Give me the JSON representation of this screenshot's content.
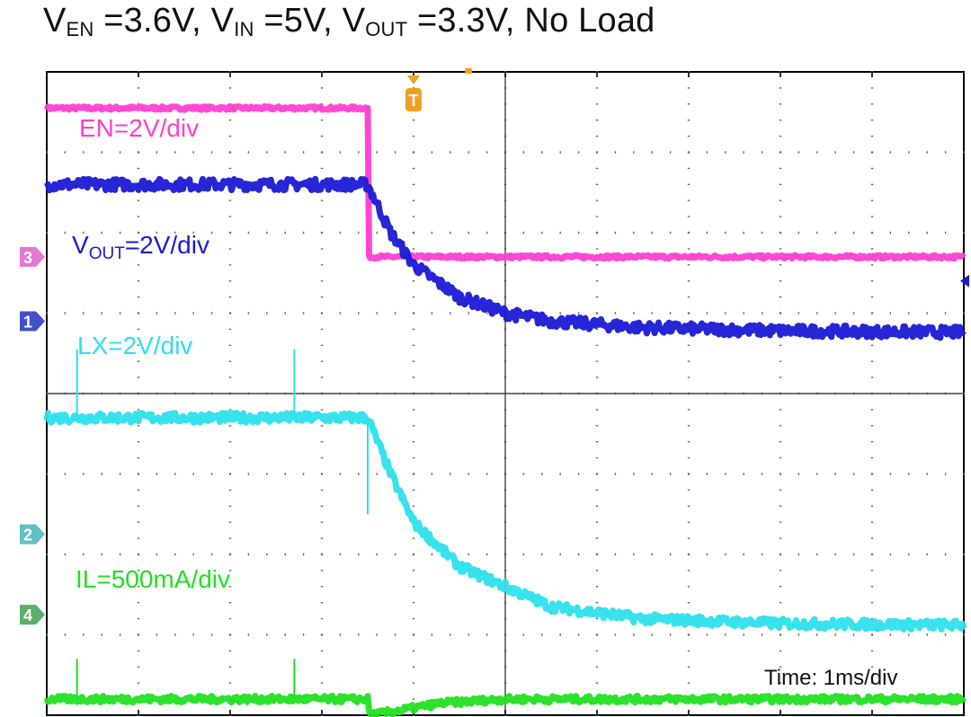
{
  "title": {
    "parts": [
      {
        "main": "V",
        "sub": "EN",
        "rest": " =3.6V, "
      },
      {
        "main": "V",
        "sub": "IN",
        "rest": " =5V, "
      },
      {
        "main": "V",
        "sub": "OUT",
        "rest": " =3.3V, No Load"
      }
    ]
  },
  "chart_data": {
    "type": "line",
    "title": "VEN =3.6V, VIN =5V, VOUT =3.3V, No Load",
    "x_scale_label": "Time: 1ms/div",
    "divisions": {
      "x": 10,
      "y": 8
    },
    "x_range_div": [
      0,
      10
    ],
    "y_range_div": [
      -4,
      4
    ],
    "grid": true,
    "trigger_marker": "T",
    "series": [
      {
        "name": "EN",
        "label": "EN=2V/div",
        "color": "#ff3fd0",
        "channel": "3",
        "volts_per_div": 2,
        "x": [
          0,
          3.5,
          3.5,
          10
        ],
        "y": [
          3.55,
          3.55,
          1.7,
          1.7
        ],
        "noise": 0.02
      },
      {
        "name": "VOUT",
        "label_main": "V",
        "label_sub": "OUT",
        "label_rest": "=2V/div",
        "color": "#1a1ad4",
        "channel": "1",
        "volts_per_div": 2,
        "x": [
          0,
          3.5,
          3.75,
          4.0,
          4.5,
          5.0,
          5.5,
          6.5,
          8.0,
          10
        ],
        "y": [
          2.6,
          2.6,
          2.0,
          1.6,
          1.2,
          1.0,
          0.9,
          0.82,
          0.78,
          0.76
        ],
        "noise": 0.07
      },
      {
        "name": "LX",
        "label": "LX=2V/div",
        "color": "#2ce0ec",
        "channel": "2",
        "volts_per_div": 2,
        "x": [
          0,
          3.5,
          3.75,
          4.0,
          4.5,
          5.0,
          5.5,
          6.5,
          8.0,
          10
        ],
        "y": [
          -0.3,
          -0.3,
          -1.0,
          -1.6,
          -2.15,
          -2.4,
          -2.65,
          -2.8,
          -2.86,
          -2.88
        ],
        "noise": 0.06,
        "spikes": [
          {
            "x": 0.33,
            "y": 0.55
          },
          {
            "x": 2.7,
            "y": 0.55
          },
          {
            "x": 3.5,
            "y": -1.5
          }
        ]
      },
      {
        "name": "IL",
        "label": "IL=500mA/div",
        "color": "#22e022",
        "channel": "4",
        "amps_per_div": 0.5,
        "x": [
          0,
          3.5,
          3.52,
          3.8,
          4.3,
          5.0,
          10
        ],
        "y": [
          -3.8,
          -3.8,
          -4.0,
          -3.95,
          -3.85,
          -3.8,
          -3.8
        ],
        "noise": 0.04,
        "spikes": [
          {
            "x": 0.33,
            "y": -3.3
          },
          {
            "x": 2.7,
            "y": -3.3
          }
        ]
      }
    ],
    "ground_markers": [
      {
        "channel": "3",
        "y": 1.7,
        "color": "#e060c8"
      },
      {
        "channel": "1",
        "y": 0.9,
        "color": "#2030c0"
      },
      {
        "channel": "2",
        "y": -1.75,
        "color": "#48b4bc"
      },
      {
        "channel": "4",
        "y": -2.75,
        "color": "#40a050"
      }
    ]
  }
}
